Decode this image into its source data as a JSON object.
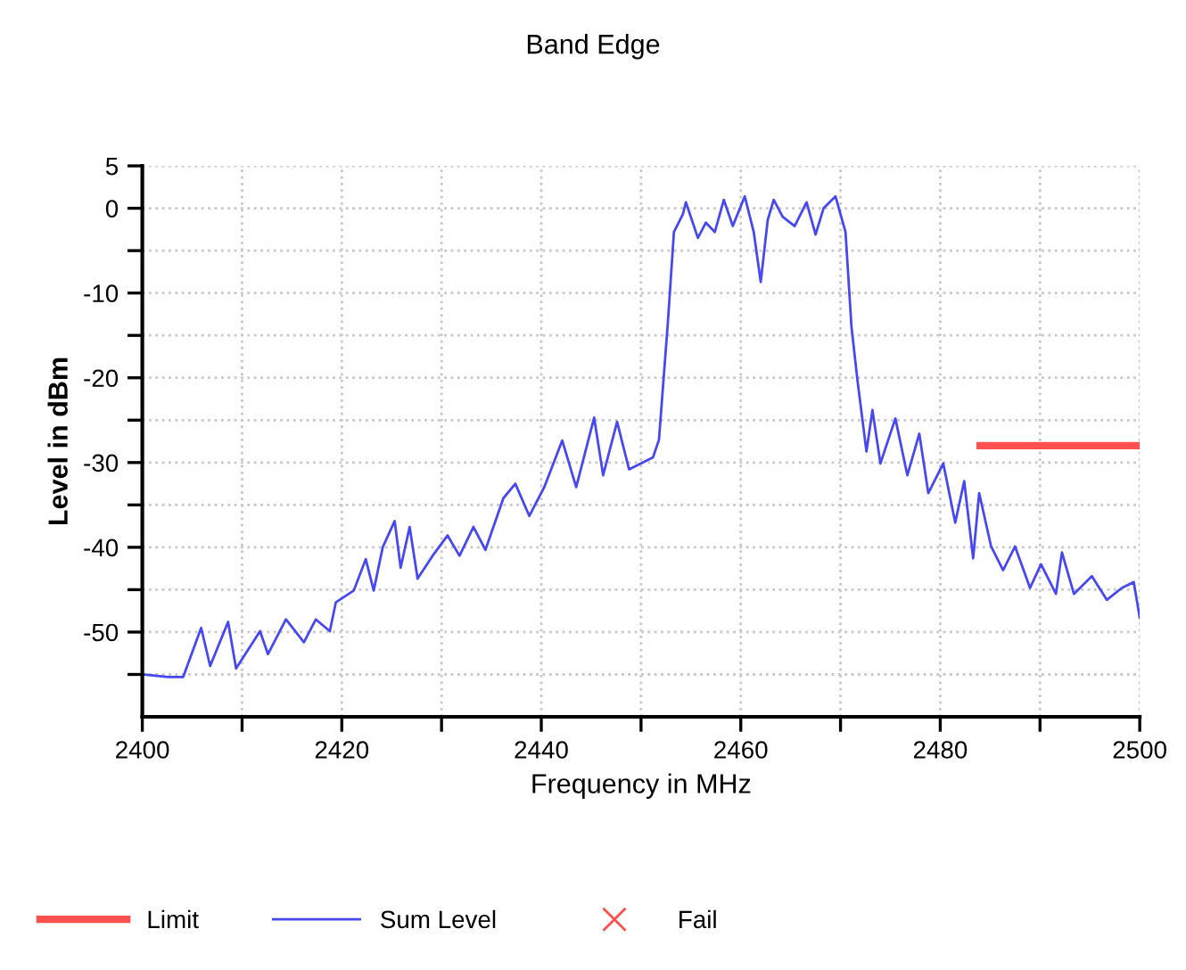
{
  "chart_data": {
    "type": "line",
    "title": "Band Edge",
    "xlabel": "Frequency in MHz",
    "ylabel": "Level in dBm",
    "xlim": [
      2400,
      2500
    ],
    "xticks": [
      2400,
      {
        "value": 2410,
        "label": null
      },
      2420,
      {
        "value": 2430,
        "label": null
      },
      2440,
      {
        "value": 2450,
        "label": null
      },
      2460,
      {
        "value": 2470,
        "label": null
      },
      2480,
      {
        "value": 2490,
        "label": null
      },
      2500
    ],
    "ylim": [
      -60,
      5
    ],
    "yticks": [
      5,
      0,
      {
        "value": -5,
        "label": null
      },
      -10,
      {
        "value": -15,
        "label": null
      },
      -20,
      {
        "value": -25,
        "label": null
      },
      -30,
      {
        "value": -35,
        "label": null
      },
      -40,
      {
        "value": -45,
        "label": null
      },
      -50,
      {
        "value": -55,
        "label": null
      }
    ],
    "grid": true,
    "legend": "bottom",
    "series": [
      {
        "name": "Limit",
        "color": "#ff5050",
        "x": [
          2484,
          2500
        ],
        "values": [
          -28,
          -28
        ]
      },
      {
        "name": "Sum Level",
        "color": "#4848f0",
        "x": [
          2400,
          2402.6,
          2404.1,
          2405.9,
          2406.8,
          2408.6,
          2409.4,
          2411.8,
          2412.6,
          2414.4,
          2416.2,
          2417.4,
          2418.8,
          2419.4,
          2421.2,
          2422.4,
          2423.2,
          2424.1,
          2425.3,
          2425.9,
          2426.8,
          2427.6,
          2429.1,
          2430.6,
          2431.8,
          2433.2,
          2434.4,
          2436.2,
          2437.4,
          2438.8,
          2440.3,
          2442.1,
          2443.5,
          2445.3,
          2446.2,
          2447.6,
          2448.8,
          2451.2,
          2451.8,
          2452.7,
          2453.3,
          2454.2,
          2454.5,
          2455.7,
          2456.5,
          2457.4,
          2458.3,
          2459.2,
          2460.4,
          2461.3,
          2462,
          2462.7,
          2463.3,
          2464.2,
          2465.4,
          2466.6,
          2467.5,
          2468.3,
          2469.5,
          2470.5,
          2471.1,
          2471.7,
          2472.6,
          2473.2,
          2474,
          2475.5,
          2476.7,
          2477.9,
          2478.8,
          2480.3,
          2481.5,
          2482.4,
          2483.3,
          2483.9,
          2485.1,
          2486.3,
          2487.5,
          2489,
          2490.1,
          2491.6,
          2492.2,
          2493.4,
          2495.2,
          2496.7,
          2498.2,
          2499.4,
          2500
        ],
        "values": [
          -55,
          -55.3,
          -55.3,
          -49.5,
          -54,
          -48.8,
          -54.3,
          -49.9,
          -52.6,
          -48.5,
          -51.2,
          -48.5,
          -49.9,
          -46.5,
          -45.1,
          -41.4,
          -45.1,
          -40,
          -36.9,
          -42.4,
          -37.6,
          -43.7,
          -41,
          -38.6,
          -41,
          -37.6,
          -40.3,
          -34.2,
          -32.5,
          -36.3,
          -32.9,
          -27.4,
          -32.9,
          -24.7,
          -31.5,
          -25.2,
          -30.8,
          -29.4,
          -27.3,
          -13.3,
          -2.8,
          -0.7,
          0.7,
          -3.5,
          -1.7,
          -2.8,
          1,
          -2.1,
          1.4,
          -2.8,
          -8.7,
          -1.4,
          1,
          -1,
          -2.1,
          0.7,
          -3.1,
          0,
          1.4,
          -2.8,
          -14,
          -20.3,
          -28.7,
          -23.8,
          -30.1,
          -24.8,
          -31.5,
          -26.6,
          -33.6,
          -30.1,
          -37.1,
          -32.2,
          -41.3,
          -33.6,
          -39.9,
          -42.7,
          -39.9,
          -44.8,
          -42,
          -45.5,
          -40.6,
          -45.5,
          -43.4,
          -46.2,
          -44.8,
          -44.1,
          -48.3
        ]
      },
      {
        "name": "Fail",
        "color": "#ff5050",
        "type": "scatter",
        "marker": "cross"
      }
    ]
  }
}
